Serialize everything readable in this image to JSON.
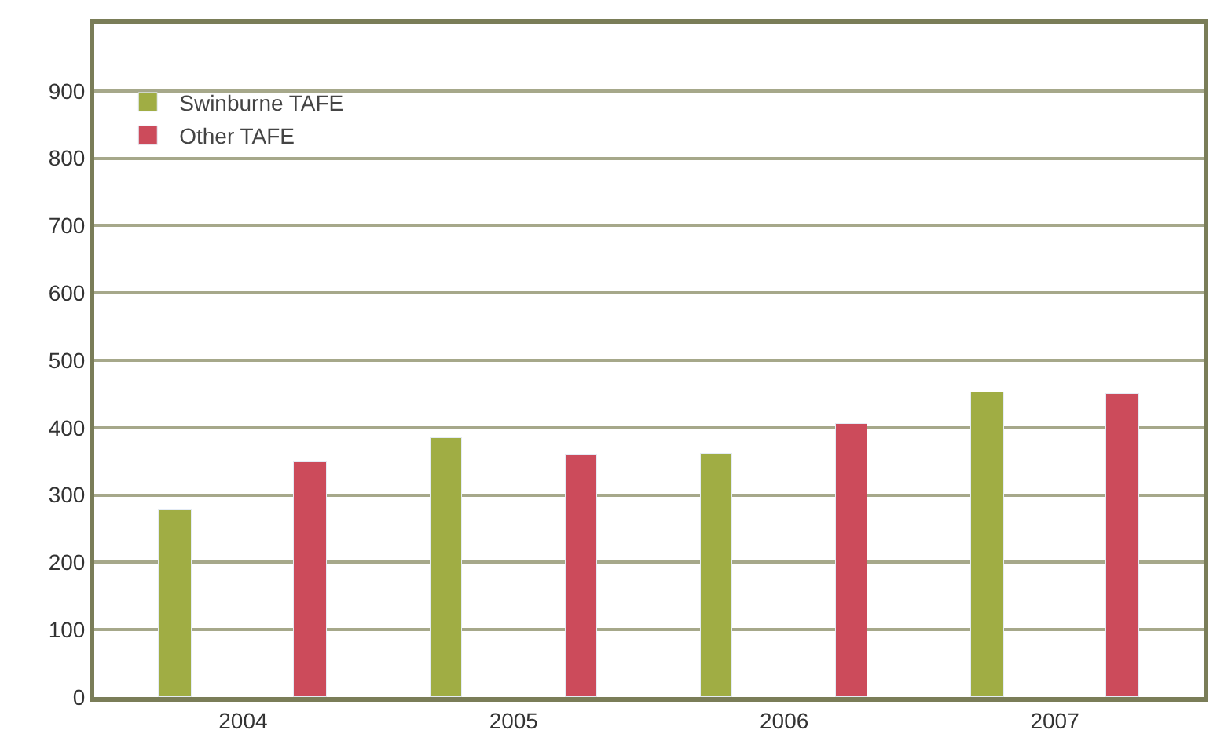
{
  "chart_data": {
    "type": "bar",
    "categories": [
      "2004",
      "2005",
      "2006",
      "2007"
    ],
    "series": [
      {
        "name": "Swinburne TAFE",
        "color": "#a0ad44",
        "values": [
          278,
          385,
          362,
          453
        ]
      },
      {
        "name": "Other TAFE",
        "color": "#cc4b5b",
        "values": [
          349,
          360,
          406,
          449
        ]
      }
    ],
    "ylim": [
      0,
      1000
    ],
    "yticks": [
      0,
      100,
      200,
      300,
      400,
      500,
      600,
      700,
      800,
      900
    ],
    "grid": "y",
    "legend": "top left"
  }
}
